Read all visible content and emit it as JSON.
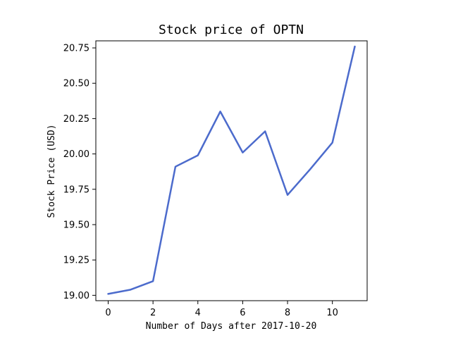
{
  "chart_data": {
    "type": "line",
    "title": "Stock price of OPTN",
    "xlabel": "Number of Days after 2017-10-20",
    "ylabel": "Stock Price (USD)",
    "x": [
      0,
      1,
      2,
      3,
      4,
      5,
      6,
      7,
      8,
      9,
      10,
      11
    ],
    "series": [
      {
        "values": [
          19.01,
          19.04,
          19.1,
          19.91,
          19.99,
          20.3,
          20.01,
          20.16,
          19.71,
          19.89,
          20.08,
          20.76
        ],
        "color": "#4c6bcc"
      }
    ],
    "xlim": [
      -0.55,
      11.55
    ],
    "ylim": [
      18.962,
      20.8
    ]
  },
  "x_ticks": [
    {
      "value": 0,
      "label": "0"
    },
    {
      "value": 2,
      "label": "2"
    },
    {
      "value": 4,
      "label": "4"
    },
    {
      "value": 6,
      "label": "6"
    },
    {
      "value": 8,
      "label": "8"
    },
    {
      "value": 10,
      "label": "10"
    }
  ],
  "y_ticks": [
    {
      "value": 19.0,
      "label": "19.00"
    },
    {
      "value": 19.25,
      "label": "19.25"
    },
    {
      "value": 19.5,
      "label": "19.50"
    },
    {
      "value": 19.75,
      "label": "19.75"
    },
    {
      "value": 20.0,
      "label": "20.00"
    },
    {
      "value": 20.25,
      "label": "20.25"
    },
    {
      "value": 20.5,
      "label": "20.50"
    },
    {
      "value": 20.75,
      "label": "20.75"
    }
  ],
  "grid": false,
  "legend": "none"
}
